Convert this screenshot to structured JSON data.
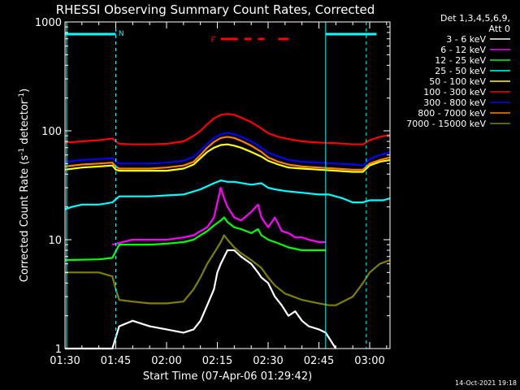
{
  "chart_data": {
    "type": "line",
    "title": "RHESSI Observing Summary Count Rates, Corrected",
    "xlabel": "Start Time (07-Apr-06 01:29:42)",
    "ylabel_main": "Corrected Count Rate (s",
    "ylabel_sup1": "-1",
    "ylabel_mid": " detector",
    "ylabel_sup2": "-1",
    "ylabel_end": ")",
    "y_scale": "log",
    "ylim": [
      1,
      1000
    ],
    "y_ticks": [
      {
        "value": 1,
        "label": "1"
      },
      {
        "value": 10,
        "label": "10"
      },
      {
        "value": 100,
        "label": "100"
      },
      {
        "value": 1000,
        "label": "1000"
      }
    ],
    "xlim_minutes": [
      0,
      96
    ],
    "x_ticks": [
      {
        "minute": 0,
        "label": "01:30"
      },
      {
        "minute": 15,
        "label": "01:45"
      },
      {
        "minute": 30,
        "label": "02:00"
      },
      {
        "minute": 45,
        "label": "02:15"
      },
      {
        "minute": 60,
        "label": "02:30"
      },
      {
        "minute": 75,
        "label": "02:45"
      },
      {
        "minute": 90,
        "label": "03:00"
      }
    ],
    "legend_header": [
      "Det 1,3,4,5,6,9,",
      "Att 0"
    ],
    "legend_position": "right",
    "annotations": {
      "night_label": "N",
      "flare_label": "F",
      "date_stamp": "14-Oct-2021 19:18"
    },
    "series": [
      {
        "name": "3 - 6 keV",
        "color": "#ffffff",
        "x": [
          0,
          10,
          14,
          16,
          20,
          25,
          30,
          35,
          38,
          40,
          42,
          44,
          45,
          46,
          48,
          50,
          52,
          55,
          57,
          58,
          60,
          62,
          64,
          66,
          68,
          70,
          72,
          75,
          77,
          80
        ],
        "y": [
          1,
          1,
          1,
          1.6,
          1.8,
          1.6,
          1.5,
          1.4,
          1.5,
          1.8,
          2.5,
          3.5,
          5,
          6,
          8,
          8,
          7,
          6,
          5,
          4.5,
          4,
          3,
          2.5,
          2,
          2.2,
          1.8,
          1.6,
          1.5,
          1.4,
          1
        ]
      },
      {
        "name": "6 - 12 keV",
        "color": "#ff00ff",
        "x": [
          14,
          20,
          25,
          30,
          35,
          38,
          40,
          42,
          44,
          45,
          46,
          47,
          48,
          50,
          52,
          55,
          57,
          58,
          60,
          62,
          64,
          66,
          68,
          70,
          72,
          75,
          77
        ],
        "y": [
          9,
          10,
          10,
          10,
          10.5,
          11,
          12,
          13,
          16,
          22,
          30,
          24,
          20,
          16,
          15,
          18,
          21,
          16,
          13,
          16,
          12,
          11.5,
          10.5,
          10.5,
          10,
          9.5,
          9.5
        ]
      },
      {
        "name": "12 - 25 keV",
        "color": "#00ff00",
        "x": [
          0,
          10,
          14,
          16,
          20,
          25,
          30,
          35,
          38,
          40,
          42,
          44,
          46,
          47,
          48,
          50,
          52,
          55,
          57,
          58,
          60,
          62,
          64,
          66,
          70,
          75,
          77
        ],
        "y": [
          6.5,
          6.6,
          6.8,
          9,
          9,
          9,
          9.2,
          9.5,
          10,
          11,
          12,
          13.5,
          15,
          16,
          14.5,
          13,
          12.5,
          11.5,
          12.5,
          11,
          10,
          9.5,
          9,
          8.5,
          8,
          8,
          8
        ]
      },
      {
        "name": "25 - 50 keV",
        "color": "#00ffff",
        "x": [
          0,
          2,
          5,
          10,
          14,
          16,
          20,
          25,
          30,
          35,
          40,
          44,
          46,
          48,
          50,
          55,
          58,
          60,
          62,
          65,
          70,
          75,
          78,
          82,
          85,
          88,
          90,
          92,
          94,
          96
        ],
        "y": [
          19,
          20,
          21,
          21,
          22,
          25,
          25,
          25,
          25.5,
          26,
          29,
          33,
          35,
          34,
          34,
          32,
          33,
          30,
          29,
          28,
          27,
          26,
          26,
          24,
          22,
          22,
          23,
          23,
          23,
          24
        ]
      },
      {
        "name": "50 - 100 keV",
        "color": "#ffff00",
        "x": [
          0,
          5,
          10,
          14,
          15,
          16,
          20,
          25,
          30,
          35,
          38,
          40,
          42,
          44,
          46,
          48,
          50,
          52,
          55,
          58,
          60,
          63,
          66,
          70,
          75,
          80,
          85,
          88,
          90,
          93,
          96
        ],
        "y": [
          44,
          46,
          47,
          48,
          44,
          43,
          43,
          43,
          43,
          45,
          49,
          56,
          64,
          70,
          74,
          75,
          73,
          70,
          64,
          58,
          53,
          49,
          46,
          45,
          44,
          43,
          42,
          42,
          48,
          52,
          54
        ]
      },
      {
        "name": "100 - 300 keV",
        "color": "#ff0000",
        "x": [
          0,
          5,
          10,
          14,
          15,
          16,
          20,
          25,
          30,
          35,
          38,
          40,
          42,
          44,
          46,
          48,
          50,
          52,
          55,
          58,
          60,
          63,
          66,
          70,
          75,
          80,
          85,
          88,
          90,
          93,
          96
        ],
        "y": [
          78,
          80,
          82,
          85,
          80,
          76,
          75,
          75,
          76,
          80,
          90,
          100,
          115,
          130,
          140,
          143,
          140,
          132,
          120,
          105,
          95,
          88,
          84,
          80,
          78,
          77,
          75,
          75,
          82,
          88,
          92
        ]
      },
      {
        "name": "300 - 800 keV",
        "color": "#0000ff",
        "x": [
          0,
          5,
          10,
          14,
          15,
          16,
          20,
          25,
          30,
          35,
          38,
          40,
          42,
          44,
          46,
          48,
          50,
          52,
          55,
          58,
          60,
          63,
          66,
          70,
          75,
          80,
          85,
          88,
          90,
          93,
          96
        ],
        "y": [
          52,
          54,
          55,
          56,
          52,
          50,
          50,
          50,
          51,
          53,
          58,
          66,
          76,
          86,
          93,
          96,
          93,
          88,
          80,
          70,
          63,
          58,
          54,
          52,
          51,
          50,
          49,
          48,
          55,
          60,
          64
        ]
      },
      {
        "name": "800 - 7000 keV",
        "color": "#ff8000",
        "x": [
          0,
          5,
          10,
          14,
          15,
          16,
          20,
          25,
          30,
          35,
          38,
          40,
          42,
          44,
          46,
          48,
          50,
          52,
          55,
          58,
          60,
          63,
          66,
          70,
          75,
          80,
          85,
          88,
          90,
          93,
          96
        ],
        "y": [
          47,
          49,
          50,
          51,
          47,
          45,
          45,
          45,
          46,
          48,
          52,
          60,
          70,
          79,
          86,
          88,
          86,
          81,
          73,
          64,
          57,
          52,
          49,
          47,
          46,
          45,
          44,
          44,
          50,
          54,
          57
        ]
      },
      {
        "name": "7000 - 15000 keV",
        "color": "#808000",
        "x": [
          0,
          5,
          10,
          14,
          15,
          16,
          20,
          25,
          30,
          35,
          38,
          40,
          42,
          44,
          46,
          47,
          48,
          50,
          52,
          55,
          58,
          60,
          62,
          65,
          70,
          75,
          78,
          80,
          85,
          88,
          90,
          93,
          96
        ],
        "y": [
          5,
          5,
          5,
          4.6,
          3.5,
          2.8,
          2.7,
          2.6,
          2.6,
          2.7,
          3.5,
          4.5,
          6,
          7.5,
          9.5,
          11,
          10,
          8.5,
          7.5,
          6.5,
          5.5,
          4.5,
          3.8,
          3.2,
          2.8,
          2.6,
          2.5,
          2.5,
          3,
          4,
          5,
          6,
          6.5
        ]
      }
    ]
  }
}
